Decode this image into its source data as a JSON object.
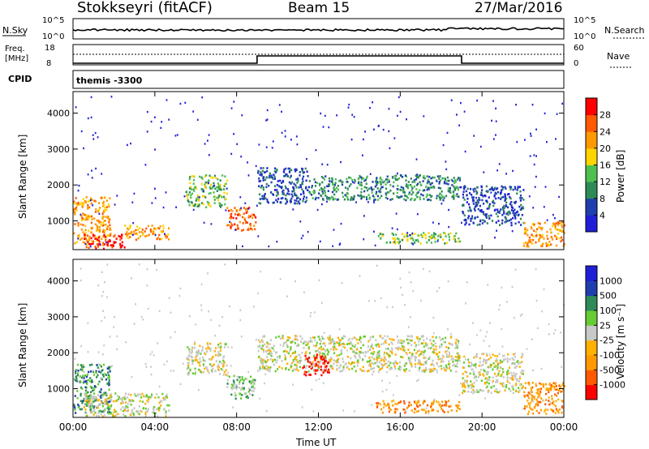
{
  "header": {
    "station": "Stokkseyri (fitACF)",
    "beam": "Beam 15",
    "date": "27/Mar/2016"
  },
  "top_panels": {
    "nsky": {
      "label": "N.Sky",
      "tick_top": "10^5",
      "tick_bottom": "10^0"
    },
    "nsearch": {
      "label": "N.Search",
      "tick_top": "10^5",
      "tick_bottom": "10^0"
    },
    "freq": {
      "label_line1": "Freq.",
      "label_line2": "[MHz]",
      "tick_top": "18",
      "tick_bottom": "8"
    },
    "nave": {
      "label": "Nave",
      "tick_top": "60",
      "tick_bottom": "0"
    },
    "cpid": {
      "label": "CPID",
      "value": "themis -3300"
    }
  },
  "colors": {
    "power": [
      "#1f1fd8",
      "#1f3fae",
      "#2e8b57",
      "#4fbf4f",
      "#ffd400",
      "#ff9900",
      "#ff5a00",
      "#ff0000"
    ],
    "velocity": [
      "#ff0000",
      "#ff5a00",
      "#ff9900",
      "#ffb000",
      "#c8c8c8",
      "#66cc33",
      "#2e8b57",
      "#1f3fae",
      "#1f1fd8"
    ]
  },
  "chart_data": [
    {
      "type": "heatmap",
      "name": "power",
      "xlabel": "",
      "ylabel": "Slant Range [km]",
      "x_ticks": [
        "00:00",
        "04:00",
        "08:00",
        "12:00",
        "16:00",
        "20:00",
        "00:00"
      ],
      "y_ticks": [
        "1000",
        "2000",
        "3000",
        "4000"
      ],
      "ylim": [
        200,
        4600
      ],
      "xlim_hours": [
        0,
        24
      ],
      "colorbar_label": "Power [dB]",
      "colorbar_ticks": [
        "4",
        "8",
        "12",
        "16",
        "20",
        "24",
        "28"
      ],
      "regions": [
        {
          "x0": 0.0,
          "x1": 1.8,
          "y0": 350,
          "y1": 1700,
          "level": 5
        },
        {
          "x0": 0.5,
          "x1": 2.5,
          "y0": 250,
          "y1": 650,
          "level": 7
        },
        {
          "x0": 2.5,
          "x1": 4.7,
          "y0": 500,
          "y1": 900,
          "level": 5
        },
        {
          "x0": 5.5,
          "x1": 7.5,
          "y0": 1400,
          "y1": 2300,
          "level": 3
        },
        {
          "x0": 7.5,
          "x1": 8.9,
          "y0": 750,
          "y1": 1400,
          "level": 6
        },
        {
          "x0": 9.0,
          "x1": 11.5,
          "y0": 1500,
          "y1": 2500,
          "level": 1
        },
        {
          "x0": 11.5,
          "x1": 18.9,
          "y0": 1600,
          "y1": 2300,
          "level": 2
        },
        {
          "x0": 14.8,
          "x1": 18.9,
          "y0": 400,
          "y1": 700,
          "level": 3
        },
        {
          "x0": 19.0,
          "x1": 22.0,
          "y0": 900,
          "y1": 2000,
          "level": 1
        },
        {
          "x0": 22.0,
          "x1": 24.0,
          "y0": 300,
          "y1": 1000,
          "level": 5
        }
      ]
    },
    {
      "type": "heatmap",
      "name": "velocity",
      "xlabel": "Time UT",
      "ylabel": "Slant Range [km]",
      "x_ticks": [
        "00:00",
        "04:00",
        "08:00",
        "12:00",
        "16:00",
        "20:00",
        "00:00"
      ],
      "y_ticks": [
        "1000",
        "2000",
        "3000",
        "4000"
      ],
      "ylim": [
        200,
        4600
      ],
      "xlim_hours": [
        0,
        24
      ],
      "colorbar_label": "Velocity [m s⁻¹]",
      "colorbar_ticks": [
        "1000",
        "500",
        "100",
        "25",
        "-25",
        "-100",
        "-500",
        "-1000"
      ],
      "regions": [
        {
          "x0": 0.0,
          "x1": 1.8,
          "y0": 350,
          "y1": 1700,
          "level": 6
        },
        {
          "x0": 0.5,
          "x1": 4.7,
          "y0": 250,
          "y1": 900,
          "level": 4
        },
        {
          "x0": 5.5,
          "x1": 7.5,
          "y0": 1400,
          "y1": 2300,
          "level": 4
        },
        {
          "x0": 7.5,
          "x1": 8.9,
          "y0": 750,
          "y1": 1400,
          "level": 5
        },
        {
          "x0": 9.0,
          "x1": 18.9,
          "y0": 1500,
          "y1": 2500,
          "level": 4
        },
        {
          "x0": 11.2,
          "x1": 12.5,
          "y0": 1400,
          "y1": 2000,
          "level": 0
        },
        {
          "x0": 14.8,
          "x1": 18.9,
          "y0": 350,
          "y1": 700,
          "level": 2
        },
        {
          "x0": 19.0,
          "x1": 22.0,
          "y0": 900,
          "y1": 2000,
          "level": 4
        },
        {
          "x0": 22.0,
          "x1": 24.0,
          "y0": 300,
          "y1": 1200,
          "level": 2
        }
      ]
    }
  ]
}
